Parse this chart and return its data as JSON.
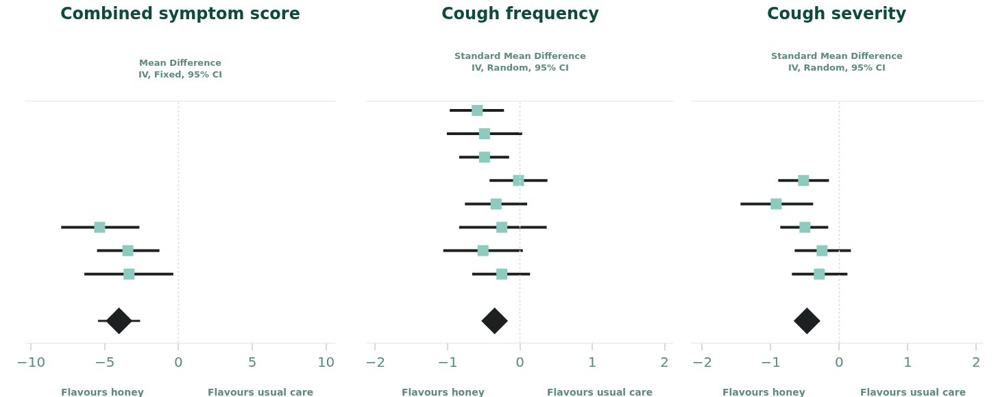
{
  "chart_data": [
    {
      "type": "scatter",
      "orientation": "horizontal",
      "title": "Combined symptom score",
      "subtitle": "Mean Difference\nIV, Fixed, 95% CI",
      "annotations": [
        "Flavours honey",
        "Flavours usual care"
      ],
      "categories": [
        null,
        null,
        null,
        null,
        null,
        null,
        null,
        null,
        null,
        null
      ],
      "marker": "square",
      "tick_labels": "x",
      "xlim": [
        -10.4,
        10.6
      ],
      "xticks": [
        -10,
        -5,
        0,
        5,
        10
      ],
      "ref_lines": [
        {
          "axis": "x",
          "value": 0,
          "color": "#dcdce4",
          "line_style": "dotted"
        }
      ],
      "series": [
        {
          "color": "#8ecbbf",
          "values": [
            null,
            null,
            null,
            null,
            null,
            -5.34,
            -3.43,
            -3.35,
            null,
            null
          ],
          "errors": [
            null,
            null,
            null,
            null,
            null,
            [
              -7.95,
              -2.65
            ],
            [
              -5.52,
              -1.29
            ],
            [
              -6.38,
              -0.35
            ],
            null,
            null
          ]
        },
        {
          "color": "#1c2020",
          "marker": "diamond",
          "values": [
            null,
            null,
            null,
            null,
            null,
            null,
            null,
            null,
            null,
            -4.03
          ],
          "errors": [
            null,
            null,
            null,
            null,
            null,
            null,
            null,
            null,
            null,
            [
              -5.46,
              -2.6
            ]
          ]
        }
      ]
    },
    {
      "type": "scatter",
      "orientation": "horizontal",
      "title": "Cough frequency",
      "subtitle": "Standard Mean Difference\nIV, Random, 95% CI",
      "annotations": [
        "Flavours honey",
        "Flavours usual care"
      ],
      "categories": [
        null,
        null,
        null,
        null,
        null,
        null,
        null,
        null,
        null,
        null
      ],
      "marker": "square",
      "tick_labels": "x",
      "xlim": [
        -2.12,
        2.12
      ],
      "xticks": [
        -2,
        -1,
        0,
        1,
        2
      ],
      "ref_lines": [
        {
          "axis": "x",
          "value": 0,
          "color": "#dcdce4",
          "line_style": "dotted"
        }
      ],
      "series": [
        {
          "color": "#8ecbbf",
          "values": [
            -0.59,
            -0.49,
            -0.49,
            -0.02,
            -0.33,
            -0.25,
            -0.51,
            -0.25,
            null,
            null
          ],
          "errors": [
            [
              -0.97,
              -0.22
            ],
            [
              -1.01,
              0.03
            ],
            [
              -0.84,
              -0.15
            ],
            [
              -0.42,
              0.38
            ],
            [
              -0.76,
              0.1
            ],
            [
              -0.84,
              0.37
            ],
            [
              -1.06,
              0.04
            ],
            [
              -0.66,
              0.14
            ],
            null,
            null
          ]
        },
        {
          "color": "#1c2020",
          "marker": "diamond",
          "values": [
            null,
            null,
            null,
            null,
            null,
            null,
            null,
            null,
            null,
            -0.35
          ],
          "errors": [
            null,
            null,
            null,
            null,
            null,
            null,
            null,
            null,
            null,
            [
              -0.49,
              -0.21
            ]
          ]
        }
      ]
    },
    {
      "type": "scatter",
      "orientation": "horizontal",
      "title": "Cough severity",
      "subtitle": "Standard Mean Difference\nIV, Random, 95% CI",
      "annotations": [
        "Flavours honey",
        "Flavours usual care"
      ],
      "categories": [
        null,
        null,
        null,
        null,
        null,
        null,
        null,
        null,
        null,
        null
      ],
      "marker": "square",
      "tick_labels": "x",
      "xlim": [
        -2.16,
        2.1
      ],
      "xticks": [
        -2,
        -1,
        0,
        1,
        2
      ],
      "ref_lines": [
        {
          "axis": "x",
          "value": 0,
          "color": "#dcdce4",
          "line_style": "dotted"
        }
      ],
      "series": [
        {
          "color": "#8ecbbf",
          "values": [
            null,
            null,
            null,
            -0.52,
            -0.92,
            -0.5,
            -0.25,
            -0.29,
            null,
            null
          ],
          "errors": [
            null,
            null,
            null,
            [
              -0.89,
              -0.15
            ],
            [
              -1.44,
              -0.38
            ],
            [
              -0.86,
              -0.16
            ],
            [
              -0.65,
              0.17
            ],
            [
              -0.69,
              0.12
            ],
            null,
            null
          ]
        },
        {
          "color": "#1c2020",
          "marker": "diamond",
          "values": [
            null,
            null,
            null,
            null,
            null,
            null,
            null,
            null,
            null,
            -0.47
          ],
          "errors": [
            null,
            null,
            null,
            null,
            null,
            null,
            null,
            null,
            null,
            [
              -0.64,
              -0.29
            ]
          ]
        }
      ]
    }
  ]
}
